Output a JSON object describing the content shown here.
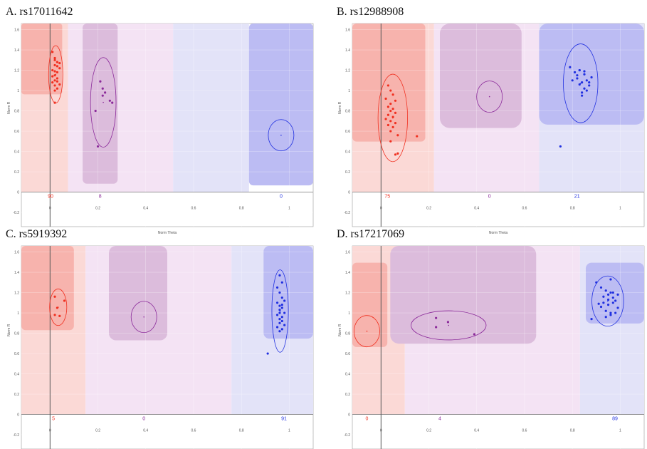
{
  "chart_data": [
    {
      "type": "scatter",
      "title": "A. rs17011642",
      "x_label": "Norm Theta",
      "y_label": "Norm R",
      "xlim": [
        -0.12,
        1.1
      ],
      "ylim": [
        -0.34,
        1.66
      ],
      "xticks": [
        0,
        0.2,
        0.4,
        0.6,
        0.8,
        1
      ],
      "yticks": [
        -0.2,
        0,
        0.2,
        0.4,
        0.6,
        0.8,
        1,
        1.2,
        1.4,
        1.6
      ],
      "grid": true,
      "series": [
        {
          "color": "#f03020",
          "count": 90,
          "x": [
            0.01,
            0.02,
            0.03,
            0.02,
            0.04,
            0.01,
            0.03,
            0.02,
            0.03,
            0.02,
            0.01,
            0.04,
            0.02,
            0.03,
            0.02,
            0.03,
            0.02,
            0.01,
            0.03,
            0.02,
            0.04,
            0.02
          ],
          "y": [
            1.38,
            1.32,
            1.28,
            1.25,
            1.22,
            1.2,
            1.18,
            1.15,
            1.12,
            1.1,
            1.08,
            1.06,
            1.05,
            1.02,
            1.3,
            1.24,
            1.19,
            1.14,
            1.09,
            1.0,
            1.27,
            0.88
          ]
        },
        {
          "color": "#8b2a9a",
          "count": 8,
          "x": [
            0.21,
            0.22,
            0.23,
            0.25,
            0.26,
            0.19,
            0.2,
            0.22
          ],
          "y": [
            1.09,
            1.02,
            0.98,
            0.9,
            0.88,
            0.8,
            0.45,
            0.95
          ]
        },
        {
          "color": "#2030e0",
          "count": 0,
          "x": [],
          "y": []
        }
      ]
    },
    {
      "type": "scatter",
      "title": "B. rs12988908",
      "x_label": "Norm Theta",
      "y_label": "Norm R",
      "xlim": [
        -0.12,
        1.1
      ],
      "ylim": [
        -0.34,
        1.66
      ],
      "xticks": [
        0,
        0.2,
        0.4,
        0.6,
        0.8,
        1
      ],
      "yticks": [
        -0.2,
        0,
        0.2,
        0.4,
        0.6,
        0.8,
        1,
        1.2,
        1.4,
        1.6
      ],
      "grid": true,
      "series": [
        {
          "color": "#f03020",
          "count": 75,
          "x": [
            0.03,
            0.04,
            0.05,
            0.02,
            0.06,
            0.04,
            0.03,
            0.05,
            0.04,
            0.06,
            0.03,
            0.05,
            0.02,
            0.04,
            0.06,
            0.03,
            0.05,
            0.04,
            0.07,
            0.04,
            0.15,
            0.06,
            0.07
          ],
          "y": [
            1.05,
            1.0,
            0.96,
            0.92,
            0.9,
            0.87,
            0.84,
            0.82,
            0.8,
            0.78,
            0.76,
            0.74,
            0.72,
            0.7,
            0.68,
            0.66,
            0.64,
            0.6,
            0.56,
            0.5,
            0.55,
            0.37,
            0.38
          ]
        },
        {
          "color": "#8b2a9a",
          "count": 0,
          "x": [],
          "y": []
        },
        {
          "color": "#2030e0",
          "count": 21,
          "x": [
            0.79,
            0.81,
            0.82,
            0.83,
            0.85,
            0.86,
            0.84,
            0.82,
            0.87,
            0.85,
            0.83,
            0.88,
            0.84,
            0.86,
            0.8,
            0.85,
            0.83,
            0.87,
            0.84,
            0.75
          ],
          "y": [
            1.23,
            1.18,
            1.15,
            1.2,
            1.16,
            1.1,
            1.08,
            1.12,
            1.05,
            1.02,
            1.06,
            1.13,
            0.98,
            1.0,
            1.1,
            1.19,
            1.2,
            1.08,
            0.95,
            0.45
          ]
        }
      ]
    },
    {
      "type": "scatter",
      "title": "C. rs5919392",
      "x_label": "Norm Theta",
      "y_label": "Norm R",
      "xlim": [
        -0.12,
        1.1
      ],
      "ylim": [
        -0.34,
        1.66
      ],
      "xticks": [
        0,
        0.2,
        0.4,
        0.6,
        0.8,
        1
      ],
      "yticks": [
        -0.2,
        0,
        0.2,
        0.4,
        0.6,
        0.8,
        1,
        1.2,
        1.4,
        1.6
      ],
      "grid": true,
      "series": [
        {
          "color": "#f03020",
          "count": 5,
          "x": [
            0.02,
            0.03,
            0.06,
            0.02,
            0.04
          ],
          "y": [
            1.16,
            1.05,
            1.12,
            0.98,
            0.97
          ]
        },
        {
          "color": "#8b2a9a",
          "count": 0,
          "x": [],
          "y": []
        },
        {
          "color": "#2030e0",
          "count": 91,
          "x": [
            0.96,
            0.97,
            0.95,
            0.96,
            0.97,
            0.98,
            0.95,
            0.96,
            0.97,
            0.96,
            0.98,
            0.95,
            0.97,
            0.96,
            0.97,
            0.96,
            0.98,
            0.95,
            0.97,
            0.96,
            0.97,
            0.96,
            0.91
          ],
          "y": [
            1.37,
            1.3,
            1.25,
            1.2,
            1.15,
            1.12,
            1.1,
            1.07,
            1.05,
            1.03,
            1.0,
            0.98,
            0.96,
            0.94,
            0.92,
            0.9,
            0.88,
            0.86,
            0.84,
            0.82,
            1.08,
            1.0,
            0.6
          ]
        }
      ]
    },
    {
      "type": "scatter",
      "title": "D. rs17217069",
      "x_label": "Norm Theta",
      "y_label": "Norm R",
      "xlim": [
        -0.12,
        1.1
      ],
      "ylim": [
        -0.34,
        1.66
      ],
      "xticks": [
        0,
        0.2,
        0.4,
        0.6,
        0.8,
        1
      ],
      "yticks": [
        -0.2,
        0,
        0.2,
        0.4,
        0.6,
        0.8,
        1,
        1.2,
        1.4,
        1.6
      ],
      "grid": true,
      "series": [
        {
          "color": "#f03020",
          "count": 0,
          "x": [],
          "y": []
        },
        {
          "color": "#8b2a9a",
          "count": 4,
          "x": [
            0.23,
            0.28,
            0.23,
            0.39
          ],
          "y": [
            0.95,
            0.91,
            0.86,
            0.79
          ]
        },
        {
          "color": "#2030e0",
          "count": 89,
          "x": [
            0.9,
            0.92,
            0.94,
            0.95,
            0.96,
            0.97,
            0.98,
            0.93,
            0.95,
            0.97,
            0.99,
            0.92,
            0.94,
            0.96,
            0.98,
            0.95,
            0.93,
            0.97,
            0.96,
            0.94,
            0.99,
            0.91,
            0.96,
            0.88
          ],
          "y": [
            1.3,
            1.25,
            1.22,
            1.18,
            1.2,
            1.15,
            1.12,
            1.1,
            1.08,
            1.1,
            1.05,
            1.06,
            1.02,
            1.0,
            1.0,
            1.13,
            1.16,
            1.2,
            1.33,
            0.96,
            1.18,
            1.09,
            0.98,
            0.94
          ]
        }
      ]
    }
  ]
}
